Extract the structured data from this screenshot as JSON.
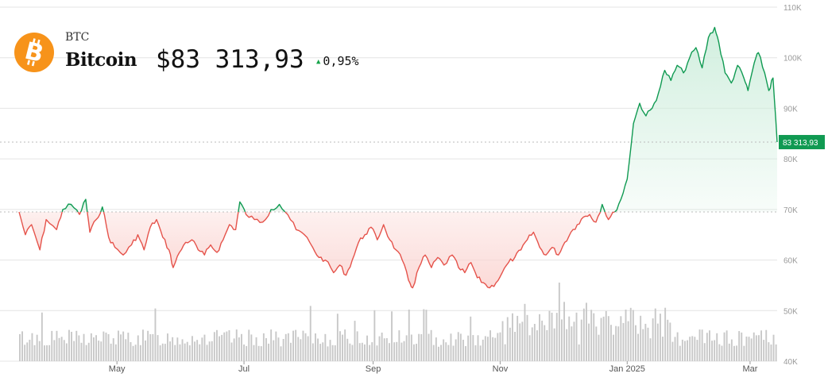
{
  "header": {
    "ticker": "BTC",
    "name": "Bitcoin",
    "price": "$83 313,93",
    "change": "0,95%",
    "change_direction": "up",
    "logo_icon": "bitcoin-icon"
  },
  "colors": {
    "up": "#109a52",
    "down": "#e5534b",
    "up_fill": "#cfeedd",
    "down_fill": "#fbd6d3",
    "volume": "#c8c8c8",
    "grid": "#e4e4e4",
    "logo": "#f7931a"
  },
  "chart_data": {
    "type": "area",
    "title": "",
    "xlabel": "",
    "ylabel": "",
    "ylim": [
      40000,
      110000
    ],
    "y_ticks": [
      40000,
      50000,
      60000,
      70000,
      80000,
      90000,
      100000,
      110000
    ],
    "y_tick_labels": [
      "40K",
      "50K",
      "60K",
      "70K",
      "80K",
      "90K",
      "100K",
      "110K"
    ],
    "x_range": [
      "2024-03-15",
      "2025-03-14"
    ],
    "x_ticks": [
      {
        "date": "2024-05-01",
        "label": "May"
      },
      {
        "date": "2024-07-01",
        "label": "Jul"
      },
      {
        "date": "2024-09-01",
        "label": "Sep"
      },
      {
        "date": "2024-11-01",
        "label": "Nov"
      },
      {
        "date": "2025-01-01",
        "label": "Jan 2025"
      },
      {
        "date": "2025-03-01",
        "label": "Mar"
      }
    ],
    "baseline": 69500,
    "last_price_label": "83 313,93",
    "last_price": 83314,
    "grid": true,
    "series": [
      {
        "values": [
          [
            "2024-03-15",
            69500
          ],
          [
            "2024-03-18",
            65000
          ],
          [
            "2024-03-21",
            67000
          ],
          [
            "2024-03-25",
            62000
          ],
          [
            "2024-03-28",
            68000
          ],
          [
            "2024-04-02",
            66000
          ],
          [
            "2024-04-05",
            70000
          ],
          [
            "2024-04-09",
            71000
          ],
          [
            "2024-04-13",
            69000
          ],
          [
            "2024-04-16",
            72000
          ],
          [
            "2024-04-18",
            65500
          ],
          [
            "2024-04-21",
            68000
          ],
          [
            "2024-04-24",
            70500
          ],
          [
            "2024-04-27",
            64500
          ],
          [
            "2024-04-30",
            62500
          ],
          [
            "2024-05-04",
            61000
          ],
          [
            "2024-05-08",
            63000
          ],
          [
            "2024-05-11",
            65000
          ],
          [
            "2024-05-14",
            62000
          ],
          [
            "2024-05-17",
            66500
          ],
          [
            "2024-05-20",
            68000
          ],
          [
            "2024-05-23",
            64500
          ],
          [
            "2024-05-26",
            62000
          ],
          [
            "2024-05-28",
            58500
          ],
          [
            "2024-05-31",
            61500
          ],
          [
            "2024-06-03",
            63500
          ],
          [
            "2024-06-06",
            64000
          ],
          [
            "2024-06-09",
            62000
          ],
          [
            "2024-06-12",
            61000
          ],
          [
            "2024-06-15",
            63000
          ],
          [
            "2024-06-18",
            61500
          ],
          [
            "2024-06-21",
            64000
          ],
          [
            "2024-06-24",
            67000
          ],
          [
            "2024-06-27",
            66000
          ],
          [
            "2024-06-29",
            71500
          ],
          [
            "2024-07-02",
            69000
          ],
          [
            "2024-07-06",
            68000
          ],
          [
            "2024-07-10",
            67500
          ],
          [
            "2024-07-14",
            70000
          ],
          [
            "2024-07-18",
            71000
          ],
          [
            "2024-07-22",
            69000
          ],
          [
            "2024-07-26",
            66000
          ],
          [
            "2024-07-30",
            65000
          ],
          [
            "2024-08-03",
            62500
          ],
          [
            "2024-08-06",
            60500
          ],
          [
            "2024-08-09",
            60000
          ],
          [
            "2024-08-13",
            57500
          ],
          [
            "2024-08-16",
            59000
          ],
          [
            "2024-08-19",
            57000
          ],
          [
            "2024-08-22",
            60000
          ],
          [
            "2024-08-25",
            63500
          ],
          [
            "2024-08-28",
            65000
          ],
          [
            "2024-08-31",
            66500
          ],
          [
            "2024-09-03",
            64000
          ],
          [
            "2024-09-06",
            67000
          ],
          [
            "2024-09-09",
            64000
          ],
          [
            "2024-09-12",
            62000
          ],
          [
            "2024-09-15",
            60000
          ],
          [
            "2024-09-18",
            56000
          ],
          [
            "2024-09-20",
            54500
          ],
          [
            "2024-09-23",
            58500
          ],
          [
            "2024-09-26",
            61000
          ],
          [
            "2024-09-29",
            58500
          ],
          [
            "2024-10-02",
            60500
          ],
          [
            "2024-10-05",
            59000
          ],
          [
            "2024-10-09",
            61000
          ],
          [
            "2024-10-12",
            58500
          ],
          [
            "2024-10-15",
            57500
          ],
          [
            "2024-10-18",
            59500
          ],
          [
            "2024-10-21",
            56500
          ],
          [
            "2024-10-24",
            55500
          ],
          [
            "2024-10-27",
            54500
          ],
          [
            "2024-10-30",
            55500
          ],
          [
            "2024-11-02",
            57500
          ],
          [
            "2024-11-05",
            59500
          ],
          [
            "2024-11-08",
            60500
          ],
          [
            "2024-11-11",
            62000
          ],
          [
            "2024-11-14",
            64000
          ],
          [
            "2024-11-17",
            65500
          ],
          [
            "2024-11-20",
            62500
          ],
          [
            "2024-11-23",
            61000
          ],
          [
            "2024-11-26",
            62500
          ],
          [
            "2024-11-29",
            61000
          ],
          [
            "2024-12-02",
            63500
          ],
          [
            "2024-12-05",
            65500
          ],
          [
            "2024-12-08",
            67000
          ],
          [
            "2024-12-11",
            68500
          ],
          [
            "2024-12-14",
            69000
          ],
          [
            "2024-12-17",
            67500
          ],
          [
            "2024-12-20",
            71000
          ],
          [
            "2024-12-23",
            68000
          ],
          [
            "2024-12-26",
            69500
          ],
          [
            "2024-12-29",
            72000
          ],
          [
            "2025-01-01",
            76000
          ],
          [
            "2025-01-04",
            87000
          ],
          [
            "2025-01-07",
            91000
          ],
          [
            "2025-01-10",
            88500
          ],
          [
            "2025-01-13",
            90000
          ],
          [
            "2025-01-16",
            93000
          ],
          [
            "2025-01-19",
            97500
          ],
          [
            "2025-01-22",
            95500
          ],
          [
            "2025-01-25",
            98500
          ],
          [
            "2025-01-28",
            97000
          ],
          [
            "2025-01-31",
            100000
          ],
          [
            "2025-02-03",
            102000
          ],
          [
            "2025-02-06",
            98000
          ],
          [
            "2025-02-09",
            104000
          ],
          [
            "2025-02-12",
            106000
          ],
          [
            "2025-02-14",
            103000
          ],
          [
            "2025-02-17",
            97000
          ],
          [
            "2025-02-20",
            95000
          ],
          [
            "2025-02-23",
            98500
          ],
          [
            "2025-02-26",
            96000
          ],
          [
            "2025-02-28",
            93500
          ],
          [
            "2025-03-03",
            99000
          ],
          [
            "2025-03-05",
            101000
          ],
          [
            "2025-03-08",
            97000
          ],
          [
            "2025-03-10",
            93500
          ],
          [
            "2025-03-12",
            96000
          ],
          [
            "2025-03-14",
            83314
          ]
        ]
      }
    ]
  }
}
